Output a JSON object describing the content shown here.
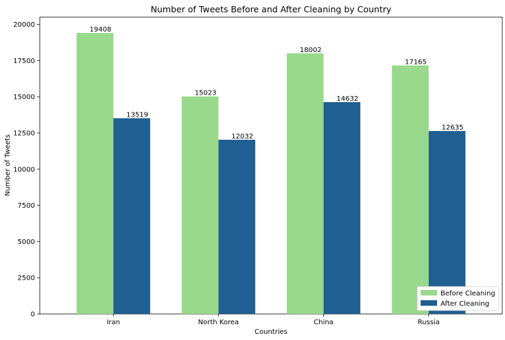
{
  "chart_data": {
    "type": "bar",
    "title": "Number of Tweets Before and After Cleaning by Country",
    "xlabel": "Countries",
    "ylabel": "Number of Tweets",
    "categories": [
      "Iran",
      "North Korea",
      "China",
      "Russia"
    ],
    "series": [
      {
        "name": "Before Cleaning",
        "values": [
          19408,
          15023,
          18002,
          17165
        ],
        "color": "#98d98c"
      },
      {
        "name": "After Cleaning",
        "values": [
          13519,
          12032,
          14632,
          12635
        ],
        "color": "#1f5f91"
      }
    ],
    "ylim": [
      0,
      20500
    ],
    "yticks": [
      0,
      2500,
      5000,
      7500,
      10000,
      12500,
      15000,
      17500,
      20000
    ],
    "grid": false,
    "legend": "lower-right"
  }
}
